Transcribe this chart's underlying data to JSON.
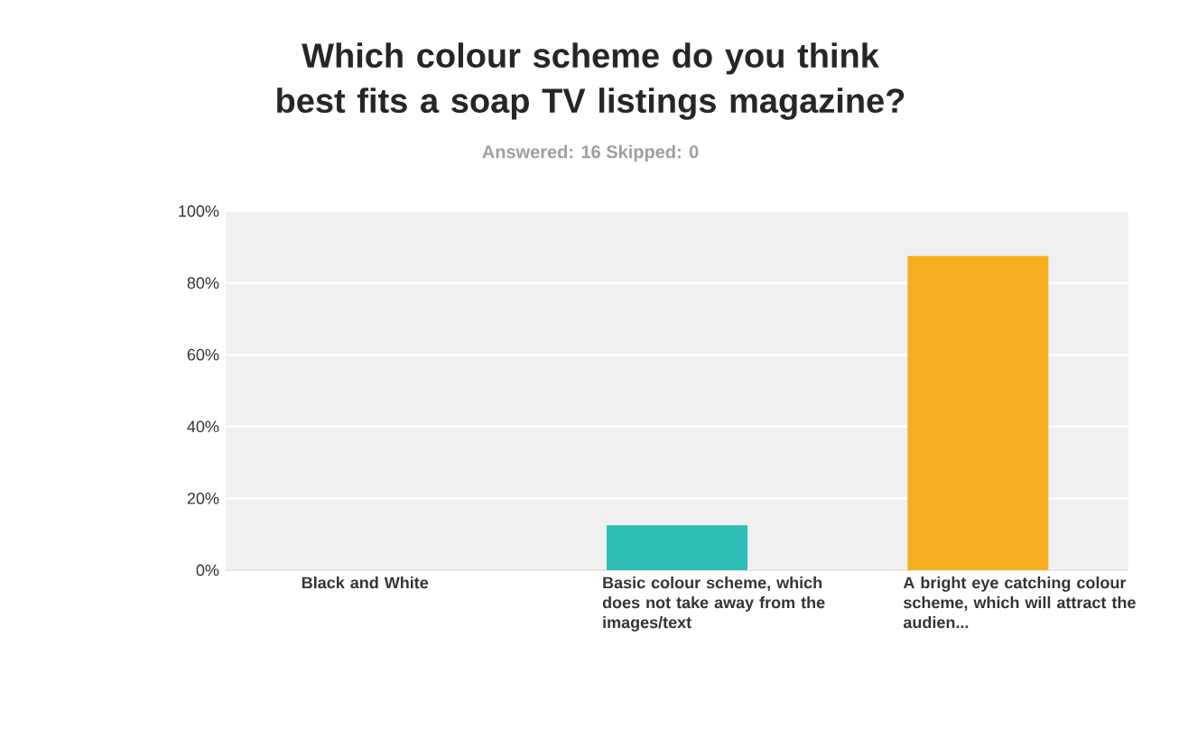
{
  "chart_data": {
    "type": "bar",
    "title": "Which colour scheme do you think best fits a soap TV listings magazine?",
    "subtitle": "Answered: 16    Skipped: 0",
    "categories": [
      "Black and White",
      "Basic colour scheme, which does not take away from the images/text",
      "A bright eye catching colour scheme, which will attract the audien..."
    ],
    "values": [
      0,
      12.5,
      87.5
    ],
    "colors": [
      "#2dbdb6",
      "#2dbdb6",
      "#f5ae20"
    ],
    "ylim": [
      0,
      100
    ],
    "yticks": [
      {
        "value": 0,
        "label": "0%"
      },
      {
        "value": 20,
        "label": "20%"
      },
      {
        "value": 40,
        "label": "40%"
      },
      {
        "value": 60,
        "label": "60%"
      },
      {
        "value": 80,
        "label": "80%"
      },
      {
        "value": 100,
        "label": "100%"
      }
    ],
    "grid": "y"
  }
}
